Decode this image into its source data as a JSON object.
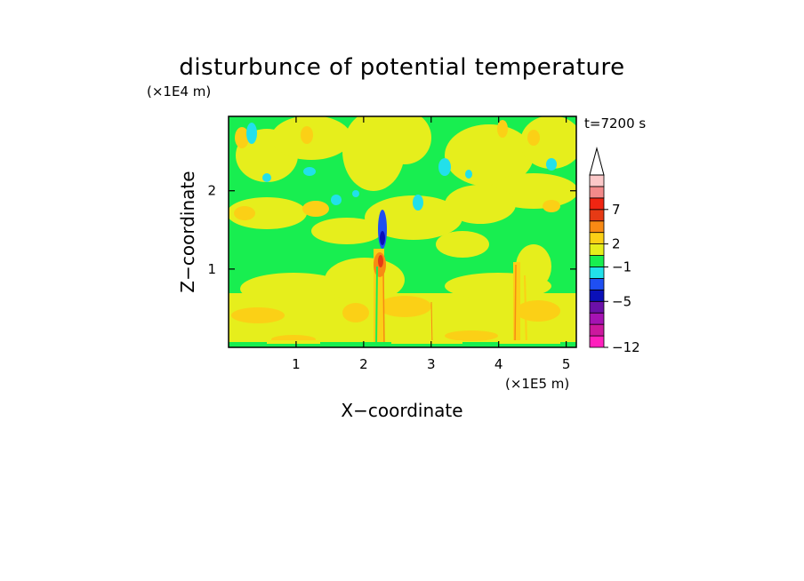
{
  "chart_data": {
    "type": "heatmap",
    "title": "disturbunce of potential temperature",
    "time_label": "t=7200 s",
    "xlabel": "X−coordinate",
    "ylabel": "Z−coordinate",
    "x_unit": "(×1E5 m)",
    "y_unit": "(×1E4 m)",
    "xlim": [
      0,
      5.15
    ],
    "ylim": [
      0,
      2.95
    ],
    "x_ticks": [
      1,
      2,
      3,
      4,
      5
    ],
    "x_tick_labels": [
      "1",
      "2",
      "3",
      "4",
      "5"
    ],
    "y_ticks": [
      1,
      2
    ],
    "y_tick_labels": [
      "1",
      "2"
    ],
    "colorbar": {
      "colors": [
        "#ff1fbd",
        "#cc189e",
        "#a513b3",
        "#6b10a8",
        "#0a10b8",
        "#1f4ff2",
        "#22e0ea",
        "#18ee50",
        "#e6ee1c",
        "#fbd016",
        "#f88a14",
        "#e63a15",
        "#f02512",
        "#f28a8a",
        "#fbc8c8"
      ],
      "tick_labels": [
        {
          "label": "7",
          "index": 12
        },
        {
          "label": "2",
          "index": 9
        },
        {
          "label": "−1",
          "index": 7
        },
        {
          "label": "−5",
          "index": 4
        },
        {
          "label": "−12",
          "index": 0
        }
      ],
      "extend": "max"
    },
    "features": [
      {
        "x": 2.28,
        "z": 1.35,
        "value": -5
      },
      {
        "x": 2.25,
        "z": 1.1,
        "value": 7
      },
      {
        "x": 4.25,
        "z": 1.0,
        "value": 2
      }
    ]
  }
}
